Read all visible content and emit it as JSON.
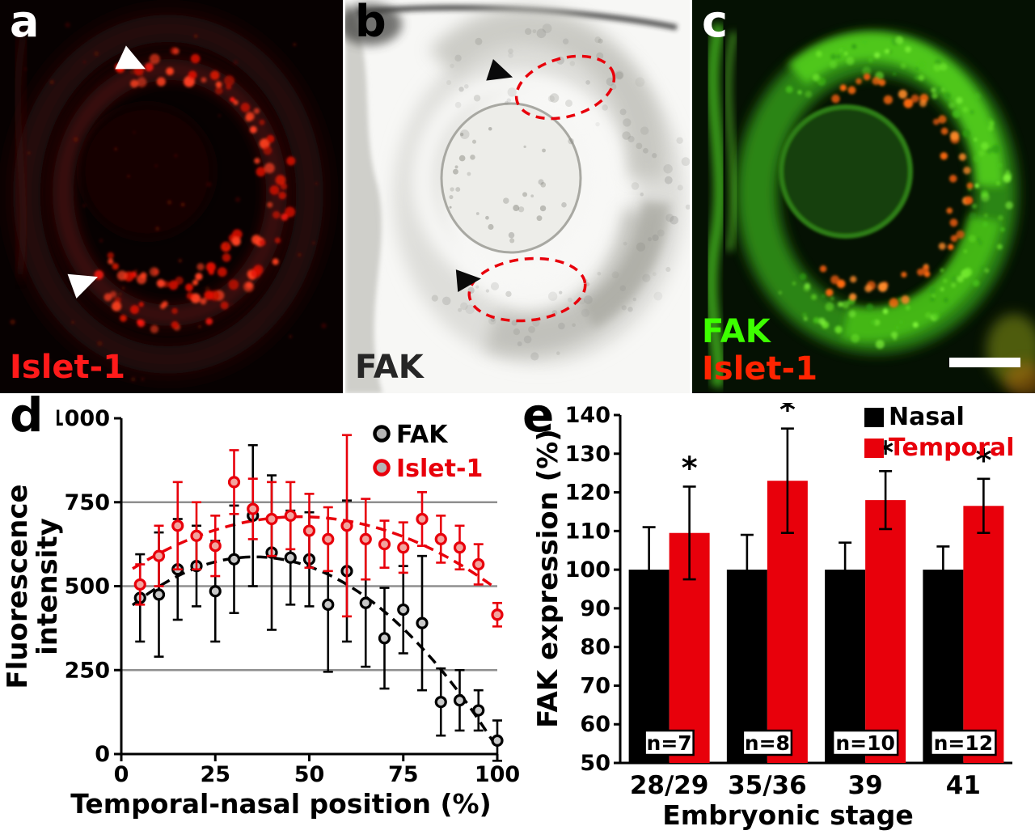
{
  "figure": {
    "panels": {
      "a": {
        "letter": "a",
        "stain_label": "Islet-1",
        "stain_color": "#ff1a1a"
      },
      "b": {
        "letter": "b",
        "stain_label": "FAK",
        "stain_color": "#262626"
      },
      "c": {
        "letter": "c",
        "stain_labels": [
          {
            "text": "FAK",
            "color": "#3dff00"
          },
          {
            "text": "Islet-1",
            "color": "#ff2400"
          }
        ],
        "scale_bar": true
      },
      "d": {
        "letter": "d"
      },
      "e": {
        "letter": "e"
      }
    }
  },
  "chart_data": [
    {
      "panel": "d",
      "type": "scatter",
      "xlabel": "Temporal-nasal position (%)",
      "ylabel": "Fluorescence intensity",
      "ylabel_lines": [
        "Fluorescence",
        "intensity"
      ],
      "xlim": [
        0,
        100
      ],
      "ylim": [
        0,
        1000
      ],
      "xticks": [
        0,
        25,
        50,
        75,
        100
      ],
      "yticks": [
        0,
        250,
        500,
        750,
        1000
      ],
      "gridlines_y": [
        250,
        500,
        750
      ],
      "grid_color": "#8f8f8f",
      "legend_position": "top-right",
      "x": [
        5,
        10,
        15,
        20,
        25,
        30,
        35,
        40,
        45,
        50,
        55,
        60,
        65,
        70,
        75,
        80,
        85,
        90,
        95,
        100
      ],
      "series": [
        {
          "name": "FAK",
          "color": "#000000",
          "marker_fill": "#c9c9c9",
          "trend": "quadratic-dashed",
          "values": [
            465,
            475,
            550,
            560,
            485,
            580,
            710,
            600,
            585,
            580,
            445,
            545,
            450,
            345,
            430,
            390,
            155,
            160,
            130,
            40
          ],
          "errors": [
            130,
            185,
            150,
            120,
            150,
            160,
            210,
            230,
            140,
            140,
            200,
            210,
            190,
            150,
            130,
            200,
            100,
            90,
            60,
            60
          ]
        },
        {
          "name": "Islet-1",
          "color": "#e8000b",
          "marker_fill": "#f2a49e",
          "trend": "quadratic-dashed",
          "values": [
            505,
            590,
            680,
            650,
            620,
            810,
            730,
            700,
            710,
            665,
            640,
            680,
            640,
            625,
            615,
            700,
            640,
            615,
            565,
            415
          ],
          "errors": [
            60,
            90,
            130,
            100,
            90,
            95,
            90,
            110,
            100,
            110,
            95,
            270,
            120,
            70,
            75,
            80,
            70,
            65,
            60,
            35
          ]
        }
      ]
    },
    {
      "panel": "e",
      "type": "bar",
      "xlabel": "Embryonic stage",
      "ylabel": "FAK expression (%)",
      "ylim": [
        50,
        140
      ],
      "yticks": [
        50,
        60,
        70,
        80,
        90,
        100,
        110,
        120,
        130,
        140
      ],
      "categories": [
        "28/29",
        "35/36",
        "39",
        "41"
      ],
      "series": [
        {
          "name": "Nasal",
          "color": "#000000",
          "values": [
            100,
            100,
            100,
            100
          ],
          "errors": [
            11,
            9,
            7,
            6
          ]
        },
        {
          "name": "Temporal",
          "color": "#e8000b",
          "values": [
            109.5,
            123,
            118,
            116.5
          ],
          "errors": [
            12,
            13.5,
            7.5,
            7
          ],
          "significance": [
            "*",
            "*",
            "*",
            "*"
          ]
        }
      ],
      "n_labels": [
        "n=7",
        "n=8",
        "n=10",
        "n=12"
      ],
      "legend_position": "top-right"
    }
  ]
}
